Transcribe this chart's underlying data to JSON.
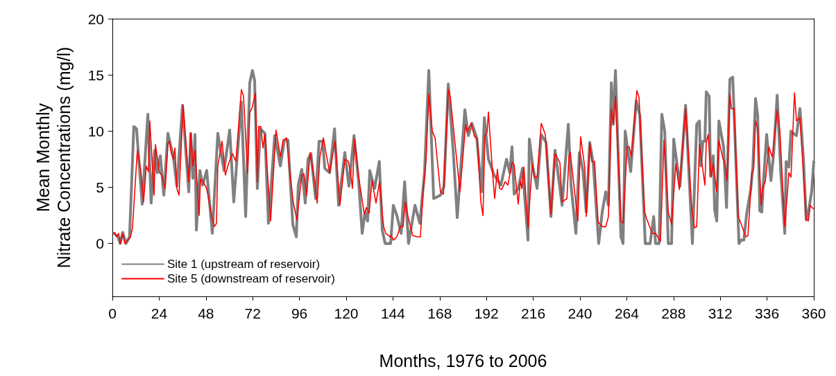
{
  "chart_data": {
    "type": "line",
    "xlabel": "Months, 1976 to 2006",
    "ylabel": "Mean Monthly\nNitrate Concentrations (mg/l)",
    "xlim": [
      0,
      360
    ],
    "xticks": [
      0,
      24,
      48,
      72,
      96,
      120,
      144,
      168,
      192,
      216,
      240,
      264,
      288,
      312,
      336,
      360
    ],
    "ylim": [
      -4.7,
      20
    ],
    "yticks": [
      0,
      5,
      10,
      15,
      20
    ],
    "grid": false,
    "legend": "bottom left",
    "marker": "none",
    "line_style": "solid",
    "series": [
      {
        "name": "Site 1 (upstream of reservoir)",
        "color": "#808080",
        "x": [
          1,
          2.8,
          4,
          5.3,
          7,
          8.8,
          11,
          12.4,
          15.3,
          18.2,
          19.9,
          21.7,
          23,
          24.6,
          26.4,
          28.5,
          31.3,
          33.1,
          36,
          39.2,
          40.2,
          41.3,
          42.4,
          43.1,
          44.9,
          46.3,
          48.4,
          51.3,
          54.1,
          57.3,
          60.2,
          62.3,
          66.2,
          68.4,
          70.5,
          71.9,
          73,
          74.4,
          75.9,
          78.3,
          80.1,
          83.3,
          86.2,
          88.3,
          90.1,
          92.6,
          94.4,
          95.4,
          97.2,
          99,
          100.4,
          101.9,
          104.3,
          106.1,
          107.9,
          109,
          111.5,
          114,
          116.1,
          119.3,
          121.4,
          124,
          126.4,
          128.2,
          129.7,
          131,
          132.1,
          134.6,
          137,
          138.5,
          140,
          142.8,
          144.2,
          146,
          148.2,
          150,
          152,
          155.3,
          157.8,
          160.2,
          162.4,
          164.9,
          168.4,
          170.2,
          172.4,
          174.9,
          177,
          180.9,
          182.7,
          184.5,
          187,
          189.5,
          190.9,
          193,
          195.9,
          199.4,
          202.3,
          204,
          205.1,
          206.2,
          208.3,
          210.5,
          213.3,
          214,
          215.8,
          218,
          220.1,
          222.6,
          225.1,
          227.2,
          230.8,
          234,
          235.4,
          237.9,
          239.7,
          241.5,
          243.2,
          245,
          246.8,
          249.6,
          251.4,
          253.2,
          254.6,
          256.1,
          257.1,
          258.2,
          261,
          262.1,
          263.2,
          266,
          268.9,
          270.7,
          273.5,
          276,
          277.8,
          278.8,
          280.6,
          282,
          283.5,
          285.3,
          287,
          288.1,
          291.3,
          294.2,
          297.7,
          299.9,
          301.3,
          302,
          303.1,
          304.1,
          304.8,
          306.3,
          307,
          308.4,
          309.1,
          310.2,
          311.3,
          313.7,
          315.2,
          316.9,
          318.4,
          321.6,
          322.6,
          324.1,
          325.5,
          327.6,
          328.7,
          330.1,
          331.2,
          332.3,
          333.3,
          334,
          335.8,
          338,
          339.4,
          341.2,
          343,
          345.1,
          345.8,
          347.2,
          348.3,
          349.4,
          351.1,
          352.9,
          354.7,
          356.1,
          357.2,
          358.9,
          360
        ],
        "values": [
          0.9,
          0.6,
          0,
          1,
          0,
          0.6,
          10.4,
          10.2,
          3.5,
          11.5,
          3.6,
          8.3,
          6.3,
          7.8,
          4.3,
          9.8,
          7.7,
          5.1,
          12.3,
          4.6,
          9.8,
          5.8,
          9.7,
          1.2,
          6.5,
          5.2,
          6.5,
          0.9,
          9.8,
          6.5,
          10.1,
          3.7,
          12.6,
          2.4,
          14.3,
          15.4,
          14.5,
          4.9,
          10.2,
          9.8,
          1.8,
          9.6,
          6.9,
          9.2,
          9.2,
          1.7,
          0.6,
          5.2,
          6.6,
          3.6,
          7.5,
          8,
          4,
          9.1,
          9.1,
          6.7,
          6.3,
          10.2,
          3.4,
          8.1,
          5.1,
          9.6,
          5.5,
          0.9,
          2.8,
          2,
          6.5,
          4.9,
          7.3,
          1.2,
          0,
          0,
          3.4,
          2.5,
          0.9,
          5.5,
          0,
          3.4,
          1.8,
          6.3,
          15.4,
          4,
          4.3,
          5.1,
          14.2,
          8.3,
          2.3,
          11.9,
          9.6,
          10.7,
          9.4,
          4.6,
          11.2,
          7.5,
          6.1,
          5.2,
          7.5,
          6.3,
          8.6,
          4.4,
          4.9,
          6.7,
          0.3,
          9.3,
          6.8,
          4.9,
          9.7,
          9,
          2.4,
          8.3,
          3.4,
          10.6,
          5.2,
          0.9,
          8.1,
          6.5,
          2.8,
          9,
          7.1,
          0,
          2.8,
          4.6,
          3.4,
          14.3,
          10.6,
          15.4,
          0.6,
          0,
          10,
          6.4,
          12.7,
          11.4,
          0,
          0,
          2.4,
          0,
          0,
          11.5,
          10,
          0,
          0,
          9.3,
          5.1,
          12.3,
          0,
          10.6,
          10.9,
          6.9,
          9.1,
          9.1,
          13.5,
          13.1,
          6,
          7.8,
          3,
          2,
          10.9,
          8.6,
          3.2,
          14.6,
          14.8,
          0,
          0.3,
          0.3,
          2.6,
          4.8,
          6.7,
          12.9,
          11.4,
          2.9,
          2.8,
          5.1,
          9.7,
          5.6,
          8,
          13.2,
          6.5,
          0.9,
          7.3,
          6.8,
          10,
          9.8,
          9.6,
          12,
          7.5,
          2.1,
          2.8,
          4.6,
          7.3
        ]
      },
      {
        "name": "Site 5 (downstream of reservoir)",
        "color": "#ff0000",
        "x": [
          1,
          2.2,
          3.2,
          4,
          5.3,
          6.4,
          9.3,
          10.3,
          12.8,
          14.6,
          16,
          17.4,
          18.5,
          19.2,
          21.4,
          22.1,
          24.2,
          25.3,
          27.1,
          28.5,
          29.2,
          30.3,
          31.3,
          32.1,
          33.1,
          34.2,
          36.3,
          39.2,
          40.2,
          41.3,
          42.4,
          44.5,
          45.2,
          46.3,
          48.4,
          50.9,
          52.3,
          53.4,
          54.1,
          56.3,
          58,
          59.8,
          61.6,
          63.4,
          66.2,
          67.3,
          69.4,
          70.5,
          71.6,
          73.4,
          74.4,
          75.1,
          76.2,
          77.3,
          78.3,
          81.2,
          84,
          86.2,
          87.6,
          89.4,
          91.2,
          92.9,
          94.7,
          97.2,
          98.3,
          99.7,
          101.5,
          103.3,
          105.1,
          106.5,
          108.3,
          109.7,
          111.5,
          114.3,
          116.8,
          119.3,
          121.1,
          122.2,
          123.2,
          124.3,
          126.4,
          129.3,
          130.3,
          131.8,
          133.2,
          135.3,
          137.1,
          139.2,
          140.3,
          142.5,
          143.2,
          144.2,
          146,
          147.8,
          149.2,
          150.3,
          151.7,
          154.2,
          156.3,
          158.1,
          159.5,
          161,
          162.4,
          164.2,
          165.6,
          168.4,
          169.9,
          172.4,
          173.4,
          178.4,
          181.3,
          182,
          184.1,
          185.9,
          187.3,
          189.1,
          190.2,
          191.2,
          192.3,
          193,
          195.2,
          196.2,
          197.6,
          198.7,
          199.8,
          201.6,
          203,
          205.1,
          206.2,
          208.3,
          209.4,
          210.1,
          211.2,
          213.3,
          215.5,
          216.5,
          218,
          220.1,
          222.2,
          225.1,
          227.2,
          229.7,
          230.8,
          233.3,
          234.3,
          235,
          238.9,
          240.3,
          242.5,
          243.2,
          245,
          246.1,
          247.5,
          249.3,
          251.4,
          253.2,
          254.6,
          256.1,
          257.1,
          258.2,
          261,
          262.1,
          264.2,
          265.3,
          266.3,
          269.2,
          270.3,
          273.1,
          274.2,
          277.1,
          278.8,
          281.3,
          283.1,
          285.3,
          287,
          289.2,
          291,
          294.2,
          297.4,
          298.8,
          299.9,
          301.3,
          304.1,
          304.8,
          305.8,
          307.3,
          308.4,
          310.2,
          311.3,
          313.4,
          314.1,
          315.5,
          316.9,
          317.7,
          319.1,
          321.2,
          322.6,
          325.1,
          326.2,
          328.3,
          329.1,
          330.1,
          331.2,
          333,
          333.7,
          335.1,
          336.9,
          338.7,
          341.2,
          342.6,
          345.1,
          346.5,
          347.2,
          348.3,
          350.1,
          351.1,
          352.9,
          356.1,
          357.2,
          358.2,
          359.6
        ],
        "values": [
          1,
          0.6,
          0.9,
          0,
          0.9,
          0,
          0.6,
          1.4,
          8.3,
          6.5,
          3.7,
          6.9,
          6.4,
          10.9,
          4.3,
          8.8,
          6.3,
          6.1,
          4.9,
          8.9,
          9.1,
          8,
          7.5,
          8.5,
          4.9,
          4.3,
          12.3,
          5.5,
          9.8,
          6.9,
          8.3,
          2.5,
          5.7,
          5.6,
          4.9,
          2.5,
          1.5,
          1.8,
          6.9,
          9.1,
          6.1,
          7.2,
          8,
          7.3,
          13.7,
          13.1,
          6.3,
          11.7,
          12,
          13.4,
          5.5,
          10.4,
          10.4,
          8.5,
          9.7,
          2,
          10.1,
          7.7,
          9.2,
          9.4,
          6.1,
          3.6,
          2.1,
          6.1,
          6.2,
          4.3,
          8.1,
          6.1,
          3.6,
          7.7,
          9.4,
          8,
          6.3,
          9.1,
          3.4,
          7.5,
          7.3,
          6.3,
          4.9,
          9.3,
          5.9,
          2.6,
          3.2,
          2.7,
          5.6,
          3.6,
          5.5,
          1.5,
          0.9,
          0.6,
          0.7,
          0.3,
          0.6,
          1.5,
          1.5,
          3.7,
          2.4,
          0.7,
          0.6,
          0.6,
          4.6,
          7.5,
          13.3,
          10,
          9.4,
          4.6,
          4.4,
          13.7,
          13.1,
          4.6,
          10.6,
          9.9,
          10.7,
          9.5,
          9.3,
          3.7,
          2.5,
          9.6,
          9.9,
          11.7,
          6.1,
          4,
          6.6,
          4.9,
          4.8,
          5.5,
          5.2,
          7.2,
          7,
          3.5,
          5.6,
          4.9,
          6.8,
          1.4,
          7.1,
          5.9,
          5.9,
          10.7,
          9.7,
          2.6,
          8,
          7.2,
          3.7,
          4,
          7.7,
          8.1,
          2,
          9.5,
          6.7,
          2.4,
          8.9,
          7.3,
          7.3,
          1.9,
          1.5,
          1.5,
          2.4,
          12,
          10.7,
          13.1,
          2,
          1.8,
          8.6,
          8.6,
          7.7,
          13.6,
          13,
          2.9,
          2.2,
          0.9,
          0.9,
          0.2,
          9.2,
          2.8,
          1.7,
          7.1,
          4.8,
          12,
          3,
          1.4,
          1.5,
          8.8,
          5.2,
          9,
          9.7,
          5.9,
          7.1,
          4.6,
          9.2,
          7.5,
          7.4,
          5.6,
          13.3,
          12,
          12,
          2.4,
          1.8,
          0.6,
          0.7,
          6.5,
          6.6,
          10.9,
          10.3,
          3.4,
          4.9,
          5.5,
          8.6,
          7.7,
          11.9,
          10,
          1.5,
          4.6,
          6.3,
          5.9,
          13.4,
          10.9,
          11.2,
          2.2,
          2,
          3.4,
          3.1
        ]
      }
    ]
  }
}
